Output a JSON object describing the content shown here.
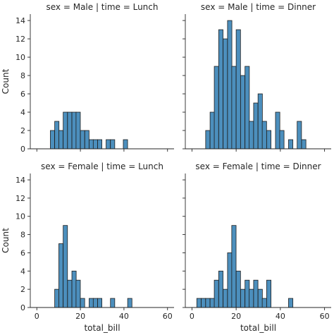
{
  "chart_data": {
    "type": "bar",
    "bar_color": "#4c8fbd",
    "edge_color": "#1f1f1f",
    "xlabel": "total_bill",
    "ylabel": "Count",
    "xlim": [
      -3,
      63
    ],
    "ylim": [
      0,
      14.7
    ],
    "xticks": [
      0,
      20,
      40,
      60
    ],
    "yticks": [
      0,
      2,
      4,
      6,
      8,
      10,
      12,
      14
    ],
    "bin_width": 1.97,
    "panels": [
      {
        "title": "sex = Male | time = Lunch",
        "bins": [
          {
            "x": 6.2,
            "count": 2
          },
          {
            "x": 8.2,
            "count": 3
          },
          {
            "x": 10.1,
            "count": 2
          },
          {
            "x": 12.1,
            "count": 4
          },
          {
            "x": 14.1,
            "count": 4
          },
          {
            "x": 16.1,
            "count": 4
          },
          {
            "x": 18.0,
            "count": 4
          },
          {
            "x": 20.0,
            "count": 2
          },
          {
            "x": 22.0,
            "count": 2
          },
          {
            "x": 24.0,
            "count": 1
          },
          {
            "x": 25.9,
            "count": 1
          },
          {
            "x": 27.9,
            "count": 1
          },
          {
            "x": 31.8,
            "count": 1
          },
          {
            "x": 33.8,
            "count": 1
          },
          {
            "x": 39.7,
            "count": 1
          }
        ]
      },
      {
        "title": "sex = Male | time = Dinner",
        "bins": [
          {
            "x": 6.2,
            "count": 2
          },
          {
            "x": 8.2,
            "count": 4
          },
          {
            "x": 10.1,
            "count": 9
          },
          {
            "x": 12.1,
            "count": 13
          },
          {
            "x": 14.1,
            "count": 12
          },
          {
            "x": 16.1,
            "count": 14
          },
          {
            "x": 18.0,
            "count": 9
          },
          {
            "x": 20.0,
            "count": 13
          },
          {
            "x": 22.0,
            "count": 8
          },
          {
            "x": 24.0,
            "count": 9
          },
          {
            "x": 25.9,
            "count": 3
          },
          {
            "x": 27.9,
            "count": 5
          },
          {
            "x": 29.9,
            "count": 6
          },
          {
            "x": 31.8,
            "count": 3
          },
          {
            "x": 33.8,
            "count": 2
          },
          {
            "x": 37.8,
            "count": 4
          },
          {
            "x": 39.7,
            "count": 2
          },
          {
            "x": 43.7,
            "count": 1
          },
          {
            "x": 47.6,
            "count": 3
          },
          {
            "x": 49.6,
            "count": 1
          }
        ]
      },
      {
        "title": "sex = Female | time = Lunch",
        "bins": [
          {
            "x": 8.2,
            "count": 2
          },
          {
            "x": 10.1,
            "count": 7
          },
          {
            "x": 12.1,
            "count": 9
          },
          {
            "x": 14.1,
            "count": 3
          },
          {
            "x": 16.1,
            "count": 4
          },
          {
            "x": 18.0,
            "count": 3
          },
          {
            "x": 20.0,
            "count": 1
          },
          {
            "x": 24.0,
            "count": 1
          },
          {
            "x": 25.9,
            "count": 1
          },
          {
            "x": 27.9,
            "count": 1
          },
          {
            "x": 33.8,
            "count": 1
          },
          {
            "x": 41.7,
            "count": 1
          }
        ]
      },
      {
        "title": "sex = Female | time = Dinner",
        "bins": [
          {
            "x": 2.2,
            "count": 1
          },
          {
            "x": 4.2,
            "count": 1
          },
          {
            "x": 6.2,
            "count": 1
          },
          {
            "x": 8.2,
            "count": 1
          },
          {
            "x": 10.1,
            "count": 3
          },
          {
            "x": 12.1,
            "count": 4
          },
          {
            "x": 14.1,
            "count": 2
          },
          {
            "x": 16.1,
            "count": 6
          },
          {
            "x": 18.0,
            "count": 9
          },
          {
            "x": 20.0,
            "count": 4
          },
          {
            "x": 22.0,
            "count": 2
          },
          {
            "x": 24.0,
            "count": 3
          },
          {
            "x": 25.9,
            "count": 2
          },
          {
            "x": 27.9,
            "count": 3
          },
          {
            "x": 29.9,
            "count": 2
          },
          {
            "x": 31.8,
            "count": 1
          },
          {
            "x": 33.8,
            "count": 3
          },
          {
            "x": 43.7,
            "count": 1
          }
        ]
      }
    ]
  }
}
